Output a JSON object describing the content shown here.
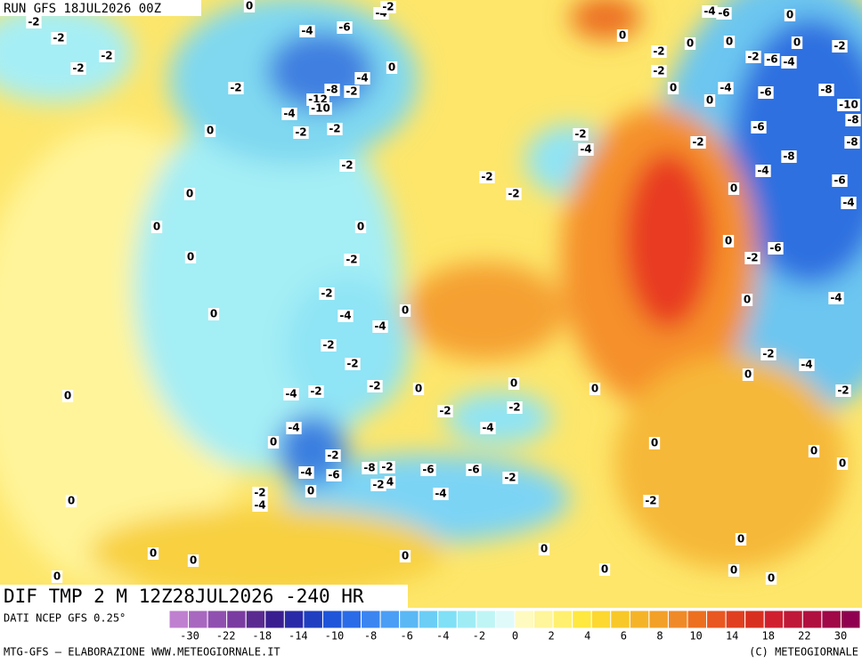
{
  "header": {
    "run": "RUN GFS 18JUL2026 00Z"
  },
  "map": {
    "title": "DIF TMP 2 M 12Z28JUL2026 -240 HR",
    "contour_labels": [
      -2,
      -2,
      -2,
      -2,
      -2,
      -4,
      -6,
      -4,
      -2,
      -8,
      -12,
      -10,
      -4,
      0,
      -2,
      -2,
      -2,
      0,
      -4,
      -2,
      0,
      0,
      0,
      0,
      0,
      0,
      -2,
      -2,
      -4,
      -4,
      0,
      -2,
      -2,
      -4,
      -2,
      -2,
      0,
      0,
      -4,
      0,
      -2,
      -4,
      -6,
      -8,
      -2,
      -2,
      4,
      -6,
      -6,
      -2,
      -2,
      -4,
      -2,
      0,
      0,
      -2,
      -4,
      0,
      -4,
      0,
      -2,
      0,
      0,
      0,
      0,
      0,
      0,
      0,
      0,
      0,
      0,
      0,
      0,
      -2,
      -2,
      -2,
      -4,
      0,
      -2,
      0,
      -2,
      -4,
      -6,
      0,
      0,
      0,
      -2,
      0,
      -4,
      -2,
      -6,
      -4,
      -6,
      -8,
      -6,
      -2,
      0,
      -8,
      -4,
      0,
      -6,
      -4,
      -2,
      -6,
      0,
      0,
      -4,
      -2,
      -4,
      0,
      -2,
      -10,
      -8,
      -8
    ]
  },
  "legend": {
    "source": "DATI NCEP GFS 0.25°",
    "colors": [
      "#c080d0",
      "#a868c0",
      "#9050b0",
      "#7a3ca0",
      "#5a2a90",
      "#3a1e90",
      "#2a2aa8",
      "#1f3fc0",
      "#1f55d8",
      "#2a6be8",
      "#3a85f0",
      "#4a9ef5",
      "#5ab8f5",
      "#6ccef5",
      "#80e0f5",
      "#a0ecf5",
      "#c0f5f5",
      "#e0fafa",
      "#fffac0",
      "#fff59a",
      "#fff070",
      "#ffe840",
      "#fcd830",
      "#f8c828",
      "#f5b428",
      "#f2a028",
      "#f08a28",
      "#ec7020",
      "#e85820",
      "#e04020",
      "#d83020",
      "#d02030",
      "#c01838",
      "#b01040",
      "#a00848",
      "#900050"
    ],
    "labels": [
      -30,
      -22,
      -18,
      -14,
      -10,
      -8,
      -6,
      -4,
      -2,
      0,
      2,
      4,
      6,
      8,
      10,
      14,
      18,
      22,
      30
    ]
  },
  "footer": {
    "left": "MTG-GFS — ELABORAZIONE WWW.METEOGIORNALE.IT",
    "right": "(C) METEOGIORNALE"
  }
}
